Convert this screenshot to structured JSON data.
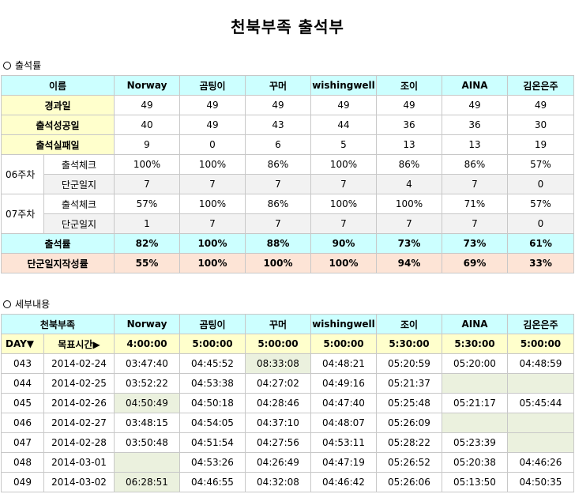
{
  "title": "천북부족 출석부",
  "section1": "출석률",
  "section2": "세부내용",
  "names": [
    "Norway",
    "곰팅이",
    "꾸머",
    "wishingwell",
    "조이",
    "AINA",
    "김온은주"
  ],
  "attendance": {
    "name_header": "이름",
    "elapsed_label": "경과일",
    "elapsed": [
      "49",
      "49",
      "49",
      "49",
      "49",
      "49",
      "49"
    ],
    "success_label": "출석성공일",
    "success": [
      "40",
      "49",
      "43",
      "44",
      "36",
      "36",
      "30"
    ],
    "fail_label": "출석실패일",
    "fail": [
      "9",
      "0",
      "6",
      "5",
      "13",
      "13",
      "19"
    ],
    "weeks": [
      {
        "label": "06주차",
        "check_label": "출석체크",
        "check": [
          "100%",
          "100%",
          "86%",
          "100%",
          "86%",
          "86%",
          "57%"
        ],
        "journal_label": "단군일지",
        "journal": [
          "7",
          "7",
          "7",
          "7",
          "4",
          "7",
          "0"
        ]
      },
      {
        "label": "07주차",
        "check_label": "출석체크",
        "check": [
          "57%",
          "100%",
          "86%",
          "100%",
          "100%",
          "71%",
          "57%"
        ],
        "journal_label": "단군일지",
        "journal": [
          "1",
          "7",
          "7",
          "7",
          "7",
          "7",
          "0"
        ]
      }
    ],
    "rate_label": "출석률",
    "rate": [
      "82%",
      "100%",
      "88%",
      "90%",
      "73%",
      "73%",
      "61%"
    ],
    "journal_rate_label": "단군일지작성률",
    "journal_rate": [
      "55%",
      "100%",
      "100%",
      "100%",
      "94%",
      "69%",
      "33%"
    ]
  },
  "details": {
    "tribe_header": "천북부족",
    "day_header": "DAY▼",
    "target_header": "목표시간▶",
    "targets": [
      "4:00:00",
      "5:00:00",
      "5:00:00",
      "5:00:00",
      "5:30:00",
      "5:30:00",
      "5:00:00"
    ],
    "rows": [
      {
        "day": "043",
        "date": "2014-02-24",
        "times": [
          "03:47:40",
          "04:45:52",
          "08:33:08",
          "04:48:21",
          "05:20:59",
          "05:20:00",
          "04:48:59"
        ],
        "late": [
          false,
          false,
          true,
          false,
          false,
          false,
          false
        ]
      },
      {
        "day": "044",
        "date": "2014-02-25",
        "times": [
          "03:52:22",
          "04:53:38",
          "04:27:02",
          "04:49:16",
          "05:21:37",
          "",
          ""
        ],
        "late": [
          false,
          false,
          false,
          false,
          false,
          true,
          true
        ]
      },
      {
        "day": "045",
        "date": "2014-02-26",
        "times": [
          "04:50:49",
          "04:50:18",
          "04:28:46",
          "04:47:40",
          "05:25:48",
          "05:21:17",
          "05:45:44"
        ],
        "late": [
          true,
          false,
          false,
          false,
          false,
          false,
          false
        ]
      },
      {
        "day": "046",
        "date": "2014-02-27",
        "times": [
          "03:48:15",
          "04:54:05",
          "04:37:10",
          "04:48:07",
          "05:26:09",
          "",
          ""
        ],
        "late": [
          false,
          false,
          false,
          false,
          false,
          true,
          true
        ]
      },
      {
        "day": "047",
        "date": "2014-02-28",
        "times": [
          "03:50:48",
          "04:51:54",
          "04:27:56",
          "04:53:11",
          "05:28:22",
          "05:23:39",
          ""
        ],
        "late": [
          false,
          false,
          false,
          false,
          false,
          false,
          true
        ]
      },
      {
        "day": "048",
        "date": "2014-03-01",
        "times": [
          "",
          "04:53:26",
          "04:26:49",
          "04:47:19",
          "05:26:52",
          "05:20:38",
          "04:46:26"
        ],
        "late": [
          true,
          false,
          false,
          false,
          false,
          false,
          false
        ]
      },
      {
        "day": "049",
        "date": "2014-03-02",
        "times": [
          "06:28:51",
          "04:46:55",
          "04:32:08",
          "04:46:42",
          "05:26:06",
          "05:13:50",
          "04:50:35"
        ],
        "late": [
          true,
          false,
          false,
          false,
          false,
          false,
          false
        ]
      }
    ]
  }
}
